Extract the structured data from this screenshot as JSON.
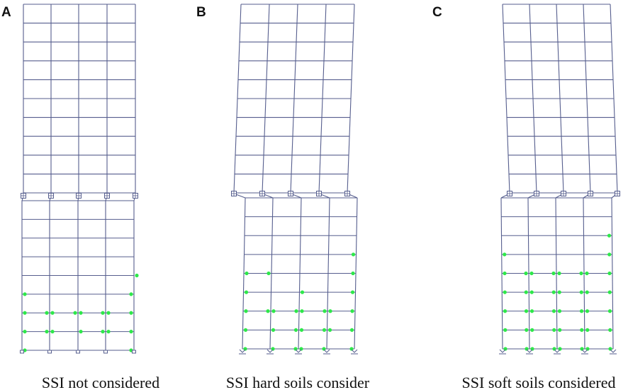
{
  "colors": {
    "frame": "#565e8e",
    "hinge": "#2ee84a",
    "background": "#ffffff"
  },
  "panels": [
    {
      "id": "A",
      "letter": "A",
      "caption": "SSI not considered",
      "support": "base-plate",
      "drift": "none",
      "hinges": [
        {
          "story": 4,
          "col": 4,
          "side": "right"
        },
        {
          "story": 5,
          "col": 0,
          "side": "right"
        },
        {
          "story": 5,
          "col": 4,
          "side": "left"
        },
        {
          "story": 6,
          "col": 0,
          "side": "right"
        },
        {
          "story": 6,
          "col": 1,
          "side": "left"
        },
        {
          "story": 6,
          "col": 1,
          "side": "right"
        },
        {
          "story": 6,
          "col": 2,
          "side": "left"
        },
        {
          "story": 6,
          "col": 2,
          "side": "right"
        },
        {
          "story": 6,
          "col": 3,
          "side": "left"
        },
        {
          "story": 6,
          "col": 3,
          "side": "right"
        },
        {
          "story": 6,
          "col": 4,
          "side": "left"
        },
        {
          "story": 7,
          "col": 0,
          "side": "right"
        },
        {
          "story": 7,
          "col": 1,
          "side": "left"
        },
        {
          "story": 7,
          "col": 1,
          "side": "right"
        },
        {
          "story": 7,
          "col": 2,
          "side": "right"
        },
        {
          "story": 7,
          "col": 3,
          "side": "left"
        },
        {
          "story": 7,
          "col": 3,
          "side": "right"
        },
        {
          "story": 7,
          "col": 4,
          "side": "left"
        },
        {
          "story": 8,
          "col": 0,
          "side": "right"
        },
        {
          "story": 8,
          "col": 4,
          "side": "left"
        }
      ]
    },
    {
      "id": "B",
      "letter": "B",
      "caption": "SSI hard soils consider",
      "support": "spring",
      "drift": "right",
      "hinges": [
        {
          "story": 3,
          "col": 4,
          "side": "left"
        },
        {
          "story": 4,
          "col": 0,
          "side": "right"
        },
        {
          "story": 4,
          "col": 1,
          "side": "left"
        },
        {
          "story": 4,
          "col": 4,
          "side": "left"
        },
        {
          "story": 5,
          "col": 0,
          "side": "right"
        },
        {
          "story": 5,
          "col": 2,
          "side": "right"
        },
        {
          "story": 5,
          "col": 4,
          "side": "left"
        },
        {
          "story": 6,
          "col": 0,
          "side": "right"
        },
        {
          "story": 6,
          "col": 1,
          "side": "left"
        },
        {
          "story": 6,
          "col": 1,
          "side": "right"
        },
        {
          "story": 6,
          "col": 2,
          "side": "left"
        },
        {
          "story": 6,
          "col": 2,
          "side": "right"
        },
        {
          "story": 6,
          "col": 3,
          "side": "left"
        },
        {
          "story": 6,
          "col": 3,
          "side": "right"
        },
        {
          "story": 6,
          "col": 4,
          "side": "left"
        },
        {
          "story": 7,
          "col": 0,
          "side": "right"
        },
        {
          "story": 7,
          "col": 1,
          "side": "right"
        },
        {
          "story": 7,
          "col": 2,
          "side": "left"
        },
        {
          "story": 7,
          "col": 2,
          "side": "right"
        },
        {
          "story": 7,
          "col": 3,
          "side": "left"
        },
        {
          "story": 7,
          "col": 3,
          "side": "right"
        },
        {
          "story": 7,
          "col": 4,
          "side": "left"
        },
        {
          "story": 8,
          "col": 0,
          "side": "right"
        },
        {
          "story": 8,
          "col": 1,
          "side": "right"
        },
        {
          "story": 8,
          "col": 2,
          "side": "left"
        },
        {
          "story": 8,
          "col": 2,
          "side": "right"
        },
        {
          "story": 8,
          "col": 3,
          "side": "left"
        },
        {
          "story": 8,
          "col": 4,
          "side": "left"
        }
      ]
    },
    {
      "id": "C",
      "letter": "C",
      "caption": "SSI soft soils considered",
      "support": "spring",
      "drift": "left",
      "hinges": [
        {
          "story": 2,
          "col": 4,
          "side": "left"
        },
        {
          "story": 3,
          "col": 0,
          "side": "right"
        },
        {
          "story": 3,
          "col": 4,
          "side": "left"
        },
        {
          "story": 4,
          "col": 0,
          "side": "right"
        },
        {
          "story": 4,
          "col": 1,
          "side": "left"
        },
        {
          "story": 4,
          "col": 1,
          "side": "right"
        },
        {
          "story": 4,
          "col": 2,
          "side": "left"
        },
        {
          "story": 4,
          "col": 2,
          "side": "right"
        },
        {
          "story": 4,
          "col": 3,
          "side": "left"
        },
        {
          "story": 4,
          "col": 3,
          "side": "right"
        },
        {
          "story": 4,
          "col": 4,
          "side": "left"
        },
        {
          "story": 5,
          "col": 0,
          "side": "right"
        },
        {
          "story": 5,
          "col": 1,
          "side": "left"
        },
        {
          "story": 5,
          "col": 1,
          "side": "right"
        },
        {
          "story": 5,
          "col": 2,
          "side": "left"
        },
        {
          "story": 5,
          "col": 2,
          "side": "right"
        },
        {
          "story": 5,
          "col": 3,
          "side": "left"
        },
        {
          "story": 5,
          "col": 3,
          "side": "right"
        },
        {
          "story": 5,
          "col": 4,
          "side": "left"
        },
        {
          "story": 6,
          "col": 0,
          "side": "right"
        },
        {
          "story": 6,
          "col": 1,
          "side": "left"
        },
        {
          "story": 6,
          "col": 1,
          "side": "right"
        },
        {
          "story": 6,
          "col": 2,
          "side": "left"
        },
        {
          "story": 6,
          "col": 2,
          "side": "right"
        },
        {
          "story": 6,
          "col": 3,
          "side": "left"
        },
        {
          "story": 6,
          "col": 3,
          "side": "right"
        },
        {
          "story": 6,
          "col": 4,
          "side": "left"
        },
        {
          "story": 7,
          "col": 0,
          "side": "right"
        },
        {
          "story": 7,
          "col": 1,
          "side": "left"
        },
        {
          "story": 7,
          "col": 1,
          "side": "right"
        },
        {
          "story": 7,
          "col": 2,
          "side": "left"
        },
        {
          "story": 7,
          "col": 2,
          "side": "right"
        },
        {
          "story": 7,
          "col": 3,
          "side": "left"
        },
        {
          "story": 7,
          "col": 3,
          "side": "right"
        },
        {
          "story": 7,
          "col": 4,
          "side": "left"
        },
        {
          "story": 8,
          "col": 0,
          "side": "right"
        },
        {
          "story": 8,
          "col": 1,
          "side": "left"
        },
        {
          "story": 8,
          "col": 1,
          "side": "right"
        },
        {
          "story": 8,
          "col": 2,
          "side": "left"
        },
        {
          "story": 8,
          "col": 2,
          "side": "right"
        },
        {
          "story": 8,
          "col": 3,
          "side": "left"
        },
        {
          "story": 8,
          "col": 3,
          "side": "right"
        },
        {
          "story": 8,
          "col": 4,
          "side": "left"
        }
      ]
    }
  ]
}
